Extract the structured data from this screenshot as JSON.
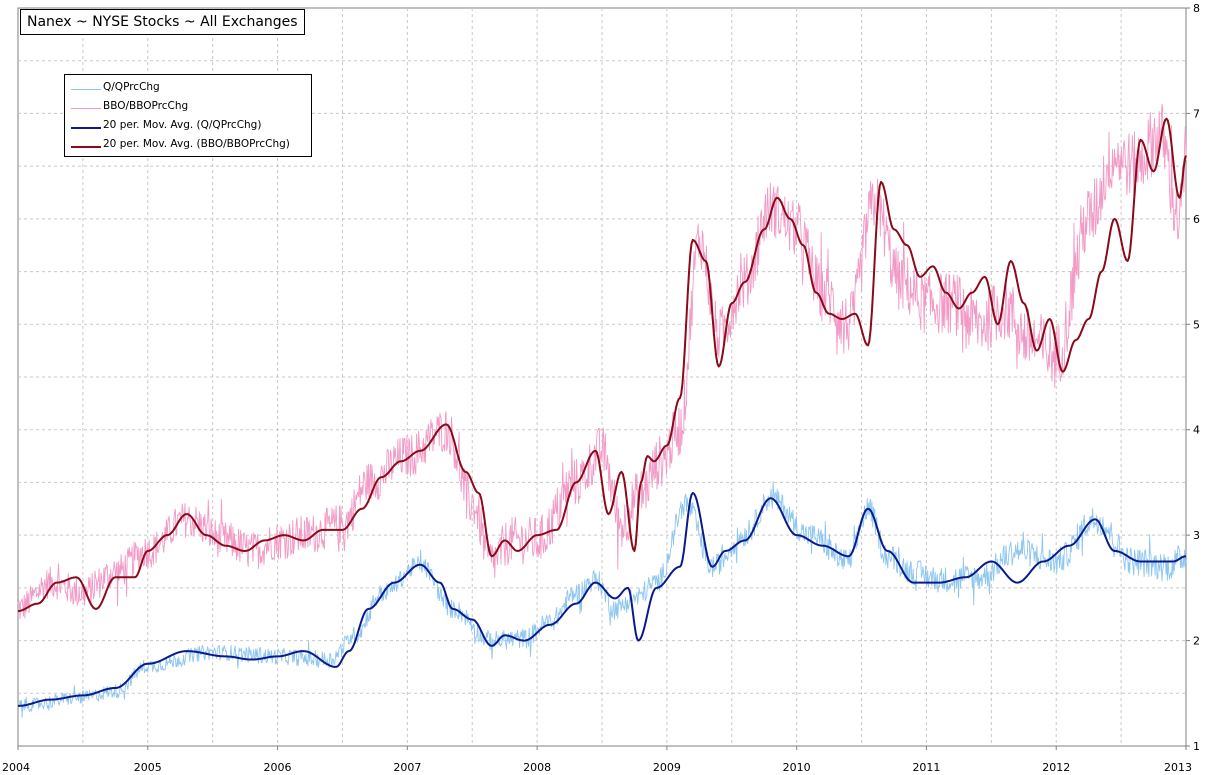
{
  "title": "Nanex ~ NYSE Stocks ~ All Exchanges",
  "chart_data": {
    "type": "line",
    "title": "Nanex ~ NYSE Stocks ~ All Exchanges",
    "xlabel": "",
    "ylabel": "",
    "xlim": [
      2004,
      2013
    ],
    "ylim": [
      1,
      8
    ],
    "x_ticks": [
      "2004",
      "2005",
      "2006",
      "2007",
      "2008",
      "2009",
      "2010",
      "2011",
      "2012",
      "2013"
    ],
    "y_ticks": [
      "1",
      "2",
      "3",
      "4",
      "5",
      "6",
      "7",
      "8"
    ],
    "grid": true,
    "legend_position": "top-left",
    "series": [
      {
        "name": "Q/QPrcChg",
        "style": "raw",
        "color": "#8ec6f0",
        "noise": 0.1,
        "x": [
          2004.0,
          2004.5,
          2004.75,
          2005.0,
          2005.5,
          2006.0,
          2006.4,
          2006.6,
          2006.8,
          2007.1,
          2007.35,
          2007.65,
          2007.9,
          2008.1,
          2008.3,
          2008.45,
          2008.6,
          2008.75,
          2008.92,
          2009.15,
          2009.35,
          2009.6,
          2009.8,
          2010.1,
          2010.4,
          2010.55,
          2010.7,
          2010.9,
          2011.1,
          2011.4,
          2011.7,
          2012.0,
          2012.3,
          2012.6,
          2012.85,
          2013.0
        ],
        "y": [
          1.38,
          1.46,
          1.52,
          1.76,
          1.89,
          1.85,
          1.82,
          2.05,
          2.45,
          2.72,
          2.3,
          2.0,
          2.02,
          2.18,
          2.45,
          2.58,
          2.3,
          2.4,
          2.55,
          3.3,
          2.7,
          3.0,
          3.35,
          3.0,
          2.75,
          3.25,
          2.8,
          2.65,
          2.58,
          2.6,
          2.85,
          2.75,
          3.15,
          2.75,
          2.7,
          2.8
        ]
      },
      {
        "name": "BBO/BBOPrcChg",
        "style": "raw",
        "color": "#f29ac6",
        "noise": 0.24,
        "x": [
          2004.0,
          2004.25,
          2004.5,
          2004.75,
          2005.0,
          2005.3,
          2005.6,
          2005.8,
          2006.0,
          2006.2,
          2006.5,
          2006.7,
          2007.0,
          2007.3,
          2007.5,
          2007.65,
          2007.8,
          2008.0,
          2008.3,
          2008.5,
          2008.65,
          2008.8,
          2008.95,
          2009.1,
          2009.25,
          2009.4,
          2009.6,
          2009.8,
          2010.0,
          2010.2,
          2010.4,
          2010.6,
          2010.8,
          2011.0,
          2011.2,
          2011.4,
          2011.6,
          2011.8,
          2012.0,
          2012.25,
          2012.45,
          2012.6,
          2012.8,
          2012.95,
          2013.0
        ],
        "y": [
          2.3,
          2.55,
          2.45,
          2.65,
          2.85,
          3.15,
          2.95,
          2.85,
          2.95,
          3.0,
          3.1,
          3.5,
          3.75,
          4.0,
          3.3,
          2.75,
          2.95,
          2.95,
          3.5,
          3.8,
          3.1,
          3.4,
          3.7,
          4.0,
          5.8,
          4.9,
          5.4,
          6.1,
          5.9,
          5.3,
          5.0,
          6.15,
          5.4,
          5.2,
          5.2,
          5.0,
          5.15,
          4.85,
          4.7,
          6.0,
          6.6,
          6.5,
          6.8,
          6.0,
          6.6
        ]
      },
      {
        "name": "20 per. Mov. Avg. (Q/QPrcChg)",
        "style": "avg",
        "color": "#0a1a8c",
        "noise": 0,
        "x": [
          2004.0,
          2004.25,
          2004.5,
          2004.75,
          2005.0,
          2005.3,
          2005.6,
          2005.8,
          2006.0,
          2006.2,
          2006.45,
          2006.55,
          2006.7,
          2006.9,
          2007.1,
          2007.25,
          2007.35,
          2007.5,
          2007.65,
          2007.75,
          2007.9,
          2008.1,
          2008.3,
          2008.45,
          2008.6,
          2008.7,
          2008.78,
          2008.92,
          2009.1,
          2009.2,
          2009.35,
          2009.45,
          2009.6,
          2009.8,
          2010.0,
          2010.2,
          2010.4,
          2010.55,
          2010.7,
          2010.9,
          2011.1,
          2011.3,
          2011.5,
          2011.7,
          2011.9,
          2012.1,
          2012.3,
          2012.45,
          2012.65,
          2012.9,
          2013.0
        ],
        "y": [
          1.38,
          1.44,
          1.48,
          1.55,
          1.78,
          1.9,
          1.85,
          1.82,
          1.85,
          1.9,
          1.75,
          1.9,
          2.3,
          2.55,
          2.72,
          2.55,
          2.3,
          2.2,
          1.95,
          2.05,
          2.0,
          2.15,
          2.35,
          2.55,
          2.4,
          2.5,
          2.0,
          2.5,
          2.7,
          3.4,
          2.7,
          2.85,
          2.95,
          3.35,
          3.0,
          2.9,
          2.8,
          3.25,
          2.85,
          2.55,
          2.55,
          2.6,
          2.75,
          2.55,
          2.75,
          2.9,
          3.15,
          2.85,
          2.75,
          2.75,
          2.8
        ]
      },
      {
        "name": "20 per. Mov. Avg. (BBO/BBOPrcChg)",
        "style": "avg",
        "color": "#8a0a1a",
        "noise": 0,
        "x": [
          2004.0,
          2004.15,
          2004.3,
          2004.45,
          2004.6,
          2004.75,
          2004.9,
          2005.0,
          2005.15,
          2005.3,
          2005.45,
          2005.6,
          2005.75,
          2005.9,
          2006.05,
          2006.2,
          2006.35,
          2006.5,
          2006.65,
          2006.8,
          2006.95,
          2007.1,
          2007.3,
          2007.45,
          2007.55,
          2007.65,
          2007.75,
          2007.85,
          2008.0,
          2008.15,
          2008.3,
          2008.45,
          2008.55,
          2008.65,
          2008.75,
          2008.8,
          2008.85,
          2008.9,
          2009.0,
          2009.1,
          2009.2,
          2009.3,
          2009.4,
          2009.5,
          2009.6,
          2009.75,
          2009.85,
          2009.95,
          2010.05,
          2010.15,
          2010.25,
          2010.35,
          2010.45,
          2010.55,
          2010.65,
          2010.75,
          2010.85,
          2010.95,
          2011.05,
          2011.15,
          2011.25,
          2011.35,
          2011.45,
          2011.55,
          2011.65,
          2011.75,
          2011.85,
          2011.95,
          2012.05,
          2012.15,
          2012.25,
          2012.35,
          2012.45,
          2012.55,
          2012.65,
          2012.75,
          2012.85,
          2012.95,
          2013.0
        ],
        "y": [
          2.28,
          2.35,
          2.55,
          2.6,
          2.3,
          2.6,
          2.6,
          2.85,
          3.0,
          3.2,
          3.0,
          2.9,
          2.85,
          2.95,
          3.0,
          2.95,
          3.05,
          3.05,
          3.25,
          3.55,
          3.7,
          3.8,
          4.05,
          3.6,
          3.4,
          2.8,
          2.95,
          2.85,
          3.0,
          3.05,
          3.5,
          3.8,
          3.2,
          3.6,
          2.85,
          3.5,
          3.75,
          3.7,
          3.85,
          4.3,
          5.8,
          5.6,
          4.6,
          5.2,
          5.4,
          5.9,
          6.2,
          6.0,
          5.75,
          5.3,
          5.1,
          5.05,
          5.1,
          4.8,
          6.35,
          5.9,
          5.75,
          5.45,
          5.55,
          5.3,
          5.15,
          5.3,
          5.45,
          5.0,
          5.6,
          5.2,
          4.75,
          5.05,
          4.55,
          4.85,
          5.05,
          5.5,
          6.0,
          5.6,
          6.75,
          6.45,
          6.95,
          6.2,
          6.6
        ]
      }
    ]
  },
  "legend": {
    "items": [
      {
        "label": "Q/QPrcChg",
        "color": "#8ec6f0",
        "thick": false
      },
      {
        "label": "BBO/BBOPrcChg",
        "color": "#f29ac6",
        "thick": false
      },
      {
        "label": "20 per. Mov. Avg. (Q/QPrcChg)",
        "color": "#0a1a8c",
        "thick": true
      },
      {
        "label": "20 per. Mov. Avg. (BBO/BBOPrcChg)",
        "color": "#8a0a1a",
        "thick": true
      }
    ]
  }
}
